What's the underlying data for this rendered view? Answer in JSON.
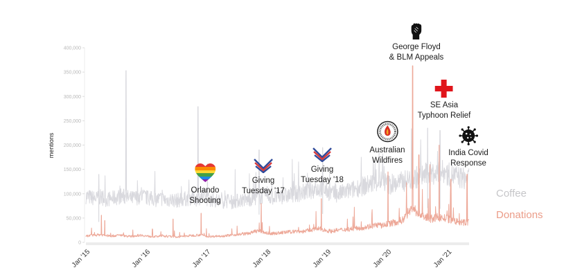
{
  "chart_data": {
    "type": "line",
    "title": "",
    "xlabel": "",
    "ylabel": "mentions",
    "ylim": [
      0,
      400000
    ],
    "yticks": [
      0,
      50000,
      100000,
      150000,
      200000,
      250000,
      300000,
      350000,
      400000
    ],
    "ytick_labels": [
      "0",
      "50,000",
      "100,000",
      "150,000",
      "200,000",
      "250,000",
      "300,000",
      "350,000",
      "400,000"
    ],
    "xlim": [
      "2015-01",
      "2021-05"
    ],
    "xtick_labels": [
      "Jan '15",
      "Jan '16",
      "Jan '17",
      "Jan '18",
      "Jan '19",
      "Jan '20",
      "Jan '21"
    ],
    "grid": false,
    "legend": "right",
    "series": [
      {
        "name": "Coffee",
        "color": "#d9d9de",
        "monthly_level": [
          95000,
          92000,
          90000,
          93000,
          88000,
          90000,
          92000,
          95000,
          93000,
          90000,
          92000,
          96000,
          92000,
          90000,
          88000,
          90000,
          87000,
          88000,
          86000,
          88000,
          90000,
          92000,
          89000,
          95000,
          90000,
          88000,
          86000,
          84000,
          85000,
          83000,
          85000,
          88000,
          87000,
          90000,
          92000,
          95000,
          95000,
          93000,
          92000,
          95000,
          96000,
          98000,
          100000,
          102000,
          105000,
          108000,
          110000,
          112000,
          105000,
          100000,
          98000,
          102000,
          105000,
          108000,
          112000,
          115000,
          118000,
          122000,
          125000,
          128000,
          120000,
          118000,
          122000,
          125000,
          128000,
          130000,
          135000,
          138000,
          140000,
          142000,
          140000,
          145000,
          140000,
          138000,
          135000,
          132000,
          130000,
          128000,
          132000,
          135000,
          138000,
          140000,
          145000,
          150000,
          150000,
          155000,
          160000,
          165000
        ],
        "spikes": [
          {
            "date": "2015-09-01",
            "value": 353000
          },
          {
            "date": "2016-11-10",
            "value": 279000
          },
          {
            "date": "2015-03-20",
            "value": 140000
          },
          {
            "date": "2017-11-15",
            "value": 190000
          },
          {
            "date": "2018-12-05",
            "value": 195000
          },
          {
            "date": "2020-09-01",
            "value": 235000
          },
          {
            "date": "2020-11-15",
            "value": 230000
          }
        ]
      },
      {
        "name": "Donations",
        "color": "#eda898",
        "monthly_level": [
          13000,
          14000,
          15000,
          16000,
          14000,
          13000,
          14000,
          15000,
          13000,
          12000,
          14000,
          15000,
          13000,
          12000,
          12000,
          13000,
          12000,
          12000,
          11000,
          12000,
          13000,
          14000,
          15000,
          16000,
          12000,
          12000,
          13000,
          13000,
          14000,
          15000,
          16000,
          17000,
          18000,
          20000,
          24000,
          22000,
          19000,
          18000,
          19000,
          20000,
          21000,
          22000,
          23000,
          22000,
          24000,
          26000,
          28000,
          27000,
          24000,
          23000,
          25000,
          26000,
          27000,
          28000,
          29000,
          30000,
          32000,
          34000,
          36000,
          34000,
          38000,
          40000,
          42000,
          46000,
          60000,
          70000,
          62000,
          55000,
          50000,
          48000,
          52000,
          50000,
          48000,
          45000,
          42000,
          40000,
          42000,
          45000,
          48000,
          50000,
          52000,
          55000,
          60000,
          65000,
          60000,
          70000,
          90000,
          110000
        ],
        "spikes": [
          {
            "date": "2015-04-05",
            "value": 56000
          },
          {
            "date": "2015-04-25",
            "value": 45000
          },
          {
            "date": "2016-06-12",
            "value": 48000
          },
          {
            "date": "2016-11-29",
            "value": 60000
          },
          {
            "date": "2017-11-28",
            "value": 80000
          },
          {
            "date": "2018-11-27",
            "value": 90000
          },
          {
            "date": "2020-01-05",
            "value": 145000
          },
          {
            "date": "2020-06-02",
            "value": 363000
          },
          {
            "date": "2020-07-10",
            "value": 180000
          },
          {
            "date": "2020-09-15",
            "value": 160000
          },
          {
            "date": "2020-11-10",
            "value": 200000
          },
          {
            "date": "2021-01-20",
            "value": 130000
          },
          {
            "date": "2021-04-28",
            "value": 140000
          }
        ]
      }
    ],
    "annotations": [
      {
        "label_lines": [
          "Orlando",
          "Shooting"
        ],
        "icon": "rainbow-heart-icon",
        "date": "2016-06-12"
      },
      {
        "label_lines": [
          "Giving",
          "Tuesday '17"
        ],
        "icon": "giving-tuesday-heart-icon",
        "date": "2017-11-28"
      },
      {
        "label_lines": [
          "Giving",
          "Tuesday '18"
        ],
        "icon": "giving-tuesday-heart-icon",
        "date": "2018-11-27"
      },
      {
        "label_lines": [
          "Australian",
          "Wildfires"
        ],
        "icon": "fire-service-badge-icon",
        "date": "2020-01-05"
      },
      {
        "label_lines": [
          "George Floyd",
          "& BLM Appeals"
        ],
        "icon": "raised-fist-icon",
        "date": "2020-06-02"
      },
      {
        "label_lines": [
          "SE Asia",
          "Typhoon Relief"
        ],
        "icon": "red-cross-icon",
        "date": "2020-11-10"
      },
      {
        "label_lines": [
          "India Covid",
          "Response"
        ],
        "icon": "virus-icon",
        "date": "2021-04-28"
      }
    ]
  },
  "legend": {
    "coffee": {
      "label": "Coffee",
      "color": "#c9c9cc"
    },
    "donations": {
      "label": "Donations",
      "color": "#eb9c88"
    }
  }
}
